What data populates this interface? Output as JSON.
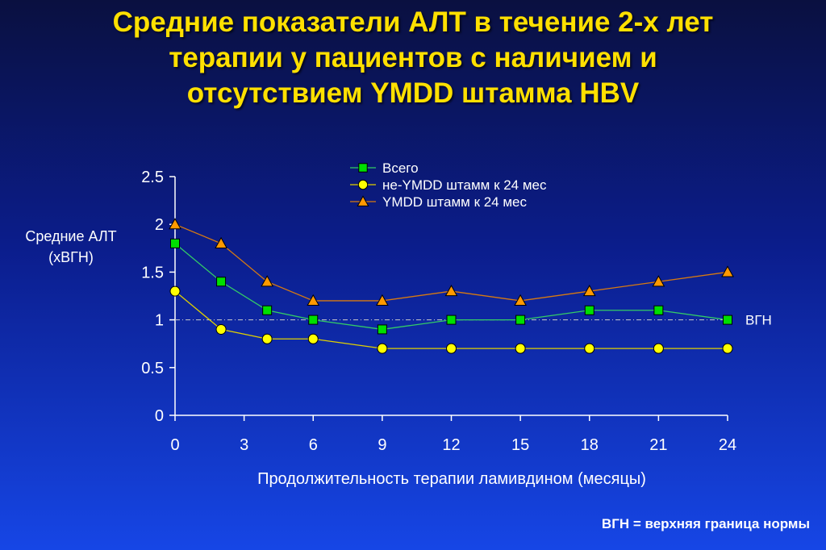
{
  "title_lines": [
    "Средние показатели АЛТ в течение 2-х лет",
    "терапии у пациентов с наличием и",
    "отсутствием YMDD штамма HBV"
  ],
  "footnote": "ВГН = верхняя граница нормы",
  "chart_data": {
    "type": "line",
    "xlabel": "Продолжительность терапии ламивдином (месяцы)",
    "ylabel_lines": [
      "Средние АЛТ",
      "(хВГН)"
    ],
    "x_ticks": [
      0,
      3,
      6,
      9,
      12,
      15,
      18,
      21,
      24
    ],
    "x_tick_labels": [
      "0",
      "3",
      "6",
      "9",
      "12",
      "15",
      "18",
      "21",
      "24"
    ],
    "y_ticks": [
      0,
      0.5,
      1,
      1.5,
      2,
      2.5
    ],
    "y_tick_labels": [
      "0",
      "0.5",
      "1",
      "1.5",
      "2",
      "2.5"
    ],
    "xlim": [
      0,
      24
    ],
    "ylim": [
      0,
      2.5
    ],
    "reference_line": {
      "y": 1,
      "label": "ВГН",
      "color": "#cccccc"
    },
    "legend_position": "top-center",
    "grid": false,
    "series": [
      {
        "name": "Всего",
        "marker": "square",
        "marker_color": "#00e000",
        "line_color": "#33cc66",
        "x": [
          0,
          2,
          4,
          6,
          9,
          12,
          15,
          18,
          21,
          24
        ],
        "y": [
          1.8,
          1.4,
          1.1,
          1.0,
          0.9,
          1.0,
          1.0,
          1.1,
          1.1,
          1.0
        ]
      },
      {
        "name": "не-YMDD штамм к 24 мес",
        "marker": "circle",
        "marker_color": "#ffff00",
        "line_color": "#e0d000",
        "x": [
          0,
          2,
          4,
          6,
          9,
          12,
          15,
          18,
          21,
          24
        ],
        "y": [
          1.3,
          0.9,
          0.8,
          0.8,
          0.7,
          0.7,
          0.7,
          0.7,
          0.7,
          0.7
        ]
      },
      {
        "name": "YMDD штамм к 24 мес",
        "marker": "triangle",
        "marker_color": "#ff9900",
        "line_color": "#d87a10",
        "x": [
          0,
          2,
          4,
          6,
          9,
          12,
          15,
          18,
          21,
          24
        ],
        "y": [
          2.0,
          1.8,
          1.4,
          1.2,
          1.2,
          1.3,
          1.2,
          1.3,
          1.4,
          1.5
        ]
      }
    ]
  }
}
